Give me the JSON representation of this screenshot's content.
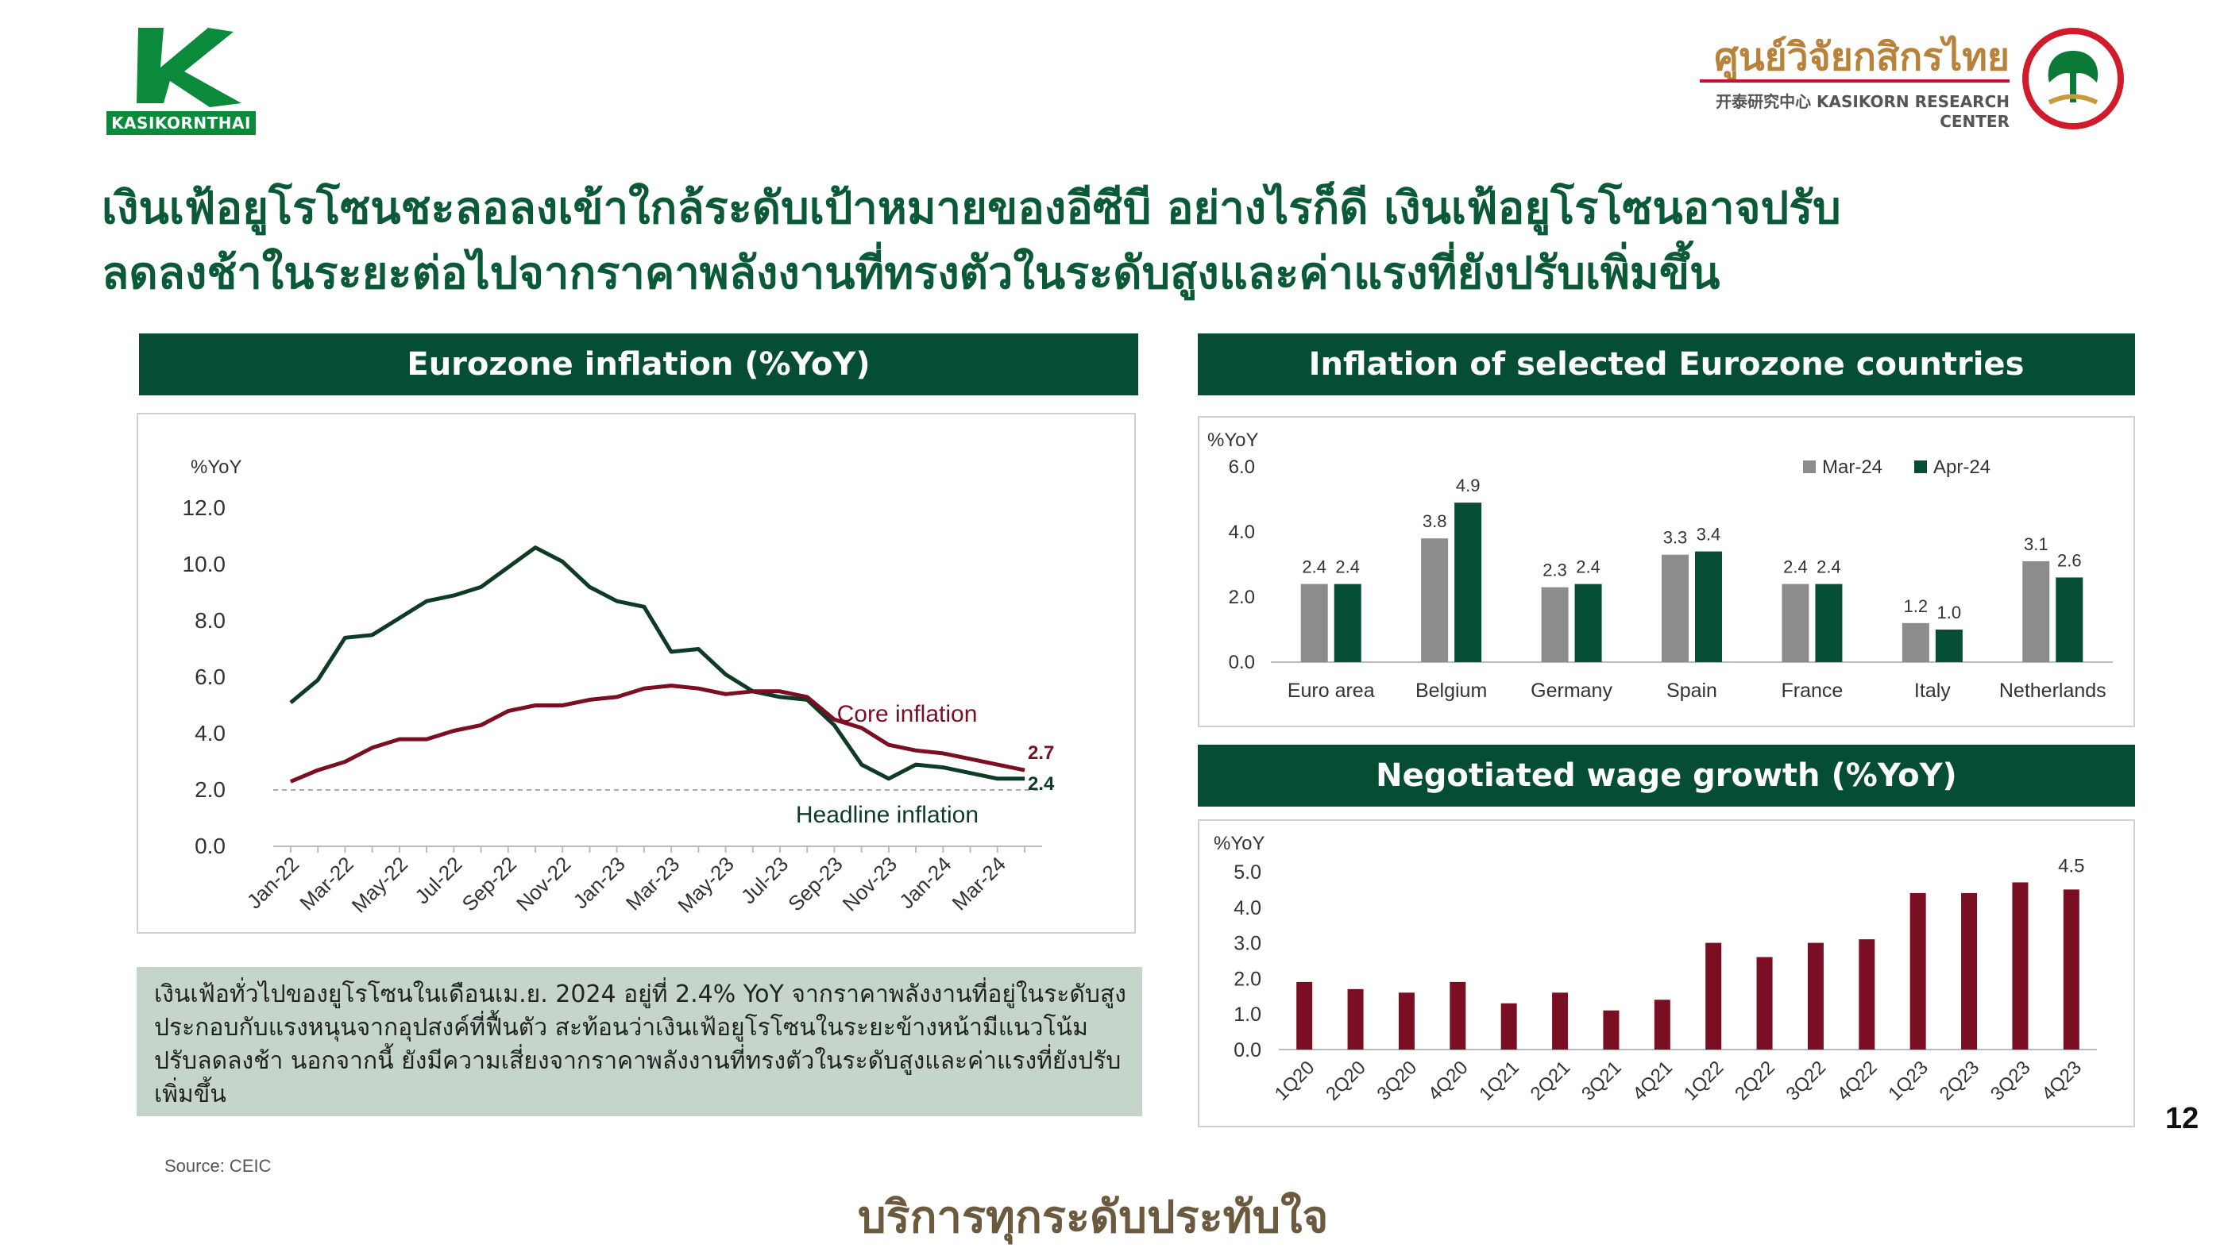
{
  "brand": {
    "left_logo_text": "KASIKORNTHAI",
    "right_logo_thai": "ศูนย์วิจัยกสิกรไทย",
    "right_logo_eng": "开泰研究中心 KASIKORN RESEARCH CENTER",
    "green": "#054e34",
    "maroon": "#7a0e23"
  },
  "headline": {
    "line1": "เงินเฟ้อยูโรโซนชะลอลงเข้าใกล้ระดับเป้าหมายของอีซีบี อย่างไรก็ดี เงินเฟ้อยูโรโซนอาจปรับ",
    "line2": "ลดลงช้าในระยะต่อไปจากราคาพลังงานที่ทรงตัวในระดับสูงและค่าแรงที่ยังปรับเพิ่มขึ้น"
  },
  "panels": {
    "left_title": "Eurozone inflation (%YoY)",
    "right_top_title": "Inflation of selected Eurozone countries",
    "right_bottom_title": "Negotiated wage growth (%YoY)"
  },
  "note": "เงินเฟ้อทั่วไปของยูโรโซนในเดือนเม.ย. 2024 อยู่ที่ 2.4% YoY จากราคาพลังงานที่อยู่ในระดับสูงประกอบกับแรงหนุนจากอุปสงค์ที่ฟื้นตัว สะท้อนว่าเงินเฟ้อยูโรโซนในระยะข้างหน้ามีแนวโน้มปรับลดลงช้า นอกจากนี้ ยังมีความเสี่ยงจากราคาพลังงานที่ทรงตัวในระดับสูงและค่าแรงที่ยังปรับเพิ่มขึ้น",
  "source": "Source: CEIC",
  "slogan": "บริการทุกระดับประทับใจ",
  "page_number": "12",
  "chart_data": [
    {
      "type": "line",
      "title": "Eurozone inflation (%YoY)",
      "ylabel": "%YoY",
      "ylim": [
        0,
        12
      ],
      "yticks": [
        "0.0",
        "2.0",
        "4.0",
        "6.0",
        "8.0",
        "10.0",
        "12.0"
      ],
      "x": [
        "Jan-22",
        "Feb-22",
        "Mar-22",
        "Apr-22",
        "May-22",
        "Jun-22",
        "Jul-22",
        "Aug-22",
        "Sep-22",
        "Oct-22",
        "Nov-22",
        "Dec-22",
        "Jan-23",
        "Feb-23",
        "Mar-23",
        "Apr-23",
        "May-23",
        "Jun-23",
        "Jul-23",
        "Aug-23",
        "Sep-23",
        "Oct-23",
        "Nov-23",
        "Dec-23",
        "Jan-24",
        "Feb-24",
        "Mar-24",
        "Apr-24"
      ],
      "xtick_labels": [
        "Jan-22",
        "Mar-22",
        "May-22",
        "Jul-22",
        "Sep-22",
        "Nov-22",
        "Jan-23",
        "Mar-23",
        "May-23",
        "Jul-23",
        "Sep-23",
        "Nov-23",
        "Jan-24",
        "Mar-24"
      ],
      "target_line": 2.0,
      "series": [
        {
          "name": "Headline inflation",
          "color": "#0d3b24",
          "end_label": "2.4",
          "values": [
            5.1,
            5.9,
            7.4,
            7.5,
            8.1,
            8.7,
            8.9,
            9.2,
            9.9,
            10.6,
            10.1,
            9.2,
            8.7,
            8.5,
            6.9,
            7.0,
            6.1,
            5.5,
            5.3,
            5.2,
            4.3,
            2.9,
            2.4,
            2.9,
            2.8,
            2.6,
            2.4,
            2.4
          ]
        },
        {
          "name": "Core inflation",
          "color": "#7a0e23",
          "end_label": "2.7",
          "values": [
            2.3,
            2.7,
            3.0,
            3.5,
            3.8,
            3.8,
            4.1,
            4.3,
            4.8,
            5.0,
            5.0,
            5.2,
            5.3,
            5.6,
            5.7,
            5.6,
            5.4,
            5.5,
            5.5,
            5.3,
            4.5,
            4.2,
            3.6,
            3.4,
            3.3,
            3.1,
            2.9,
            2.7
          ]
        }
      ]
    },
    {
      "type": "bar",
      "title": "Inflation of selected Eurozone countries",
      "ylabel": "%YoY",
      "ylim": [
        0,
        6
      ],
      "yticks": [
        "0.0",
        "2.0",
        "4.0",
        "6.0"
      ],
      "categories": [
        "Euro area",
        "Belgium",
        "Germany",
        "Spain",
        "France",
        "Italy",
        "Netherlands"
      ],
      "legend_position": "top-right",
      "series": [
        {
          "name": "Mar-24",
          "color": "#8c8c8c",
          "values": [
            2.4,
            3.8,
            2.3,
            3.3,
            2.4,
            1.2,
            3.1
          ],
          "labels": [
            "2.4",
            "3.8",
            "2.3",
            "3.3",
            "2.4",
            "1.2",
            "3.1"
          ]
        },
        {
          "name": "Apr-24",
          "color": "#054e34",
          "values": [
            2.4,
            4.9,
            2.4,
            3.4,
            2.4,
            1.0,
            2.6
          ],
          "labels": [
            "2.4",
            "4.9",
            "2.4",
            "3.4",
            "2.4",
            "1.0",
            "2.6"
          ]
        }
      ]
    },
    {
      "type": "bar",
      "title": "Negotiated wage growth (%YoY)",
      "ylabel": "%YoY",
      "ylim": [
        0,
        5
      ],
      "yticks": [
        "0.0",
        "1.0",
        "2.0",
        "3.0",
        "4.0",
        "5.0"
      ],
      "categories": [
        "1Q20",
        "2Q20",
        "3Q20",
        "4Q20",
        "1Q21",
        "2Q21",
        "3Q21",
        "4Q21",
        "1Q22",
        "2Q22",
        "3Q22",
        "4Q22",
        "1Q23",
        "2Q23",
        "3Q23",
        "4Q23"
      ],
      "values": [
        1.9,
        1.7,
        1.6,
        1.9,
        1.3,
        1.6,
        1.1,
        1.4,
        3.0,
        2.6,
        3.0,
        3.1,
        4.4,
        4.4,
        4.7,
        4.5
      ],
      "color": "#7a0e23",
      "last_label": "4.5"
    }
  ]
}
